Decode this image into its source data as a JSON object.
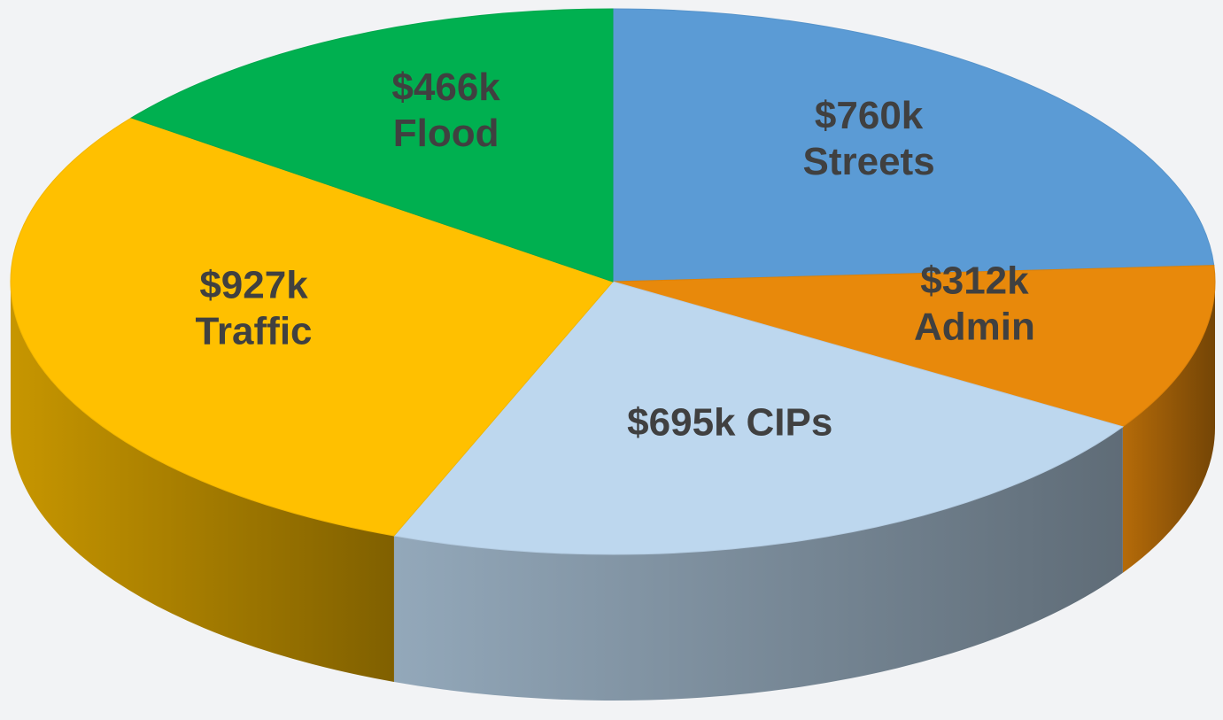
{
  "chart_data": {
    "type": "pie",
    "categories": [
      "Streets",
      "Admin",
      "CIPs",
      "Traffic",
      "Flood"
    ],
    "values": [
      760,
      312,
      695,
      927,
      466
    ],
    "value_labels": [
      "$760k",
      "$312k",
      "$695k",
      "$927k",
      "$466k"
    ],
    "colors": [
      "#5b9bd5",
      "#e8890b",
      "#bdd7ee",
      "#ffc000",
      "#00b050"
    ]
  }
}
